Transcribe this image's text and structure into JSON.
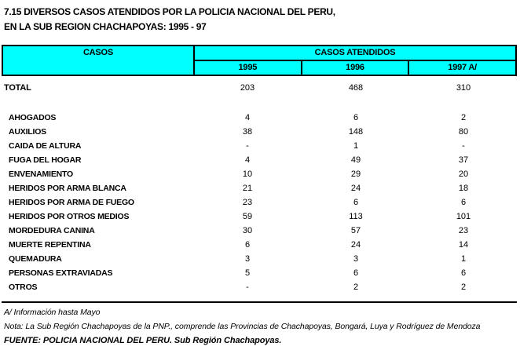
{
  "page": {
    "title_line1": "7.15 DIVERSOS CASOS ATENDIDOS POR LA POLICIA NACIONAL DEL PERU,",
    "title_line2": "EN LA SUB REGION CHACHAPOYAS: 1995 - 97"
  },
  "colors": {
    "header_bg": "#00FFFF",
    "border": "#000000"
  },
  "table": {
    "header": {
      "casos": "CASOS",
      "casos_atendidos": "CASOS ATENDIDOS",
      "years": [
        "1995",
        "1996",
        "1997 A/"
      ]
    },
    "total_row": {
      "label": "TOTAL",
      "values": [
        "203",
        "468",
        "310"
      ]
    },
    "rows": [
      {
        "label": "AHOGADOS",
        "values": [
          "4",
          "6",
          "2"
        ]
      },
      {
        "label": "AUXILIOS",
        "values": [
          "38",
          "148",
          "80"
        ]
      },
      {
        "label": "CAIDA DE ALTURA",
        "values": [
          "-",
          "1",
          "-"
        ]
      },
      {
        "label": "FUGA DEL HOGAR",
        "values": [
          "4",
          "49",
          "37"
        ]
      },
      {
        "label": "ENVENAMIENTO",
        "values": [
          "10",
          "29",
          "20"
        ]
      },
      {
        "label": "HERIDOS POR ARMA BLANCA",
        "values": [
          "21",
          "24",
          "18"
        ]
      },
      {
        "label": "HERIDOS POR ARMA DE FUEGO",
        "values": [
          "23",
          "6",
          "6"
        ]
      },
      {
        "label": "HERIDOS POR OTROS MEDIOS",
        "values": [
          "59",
          "113",
          "101"
        ]
      },
      {
        "label": "MORDEDURA CANINA",
        "values": [
          "30",
          "57",
          "23"
        ]
      },
      {
        "label": "MUERTE REPENTINA",
        "values": [
          "6",
          "24",
          "14"
        ]
      },
      {
        "label": "QUEMADURA",
        "values": [
          "3",
          "3",
          "1"
        ]
      },
      {
        "label": "PERSONAS EXTRAVIADAS",
        "values": [
          "5",
          "6",
          "6"
        ]
      },
      {
        "label": "OTROS",
        "values": [
          "-",
          "2",
          "2"
        ]
      }
    ]
  },
  "notes": {
    "note_a": "A/ Información hasta Mayo",
    "note_b": "Nota: La Sub Región Chachapoyas de la PNP., comprende las Provincias de Chachapoyas, Bongará, Luya y Rodríguez de Mendoza",
    "source": "FUENTE: POLICIA NACIONAL DEL PERU. Sub Región Chachapoyas."
  }
}
